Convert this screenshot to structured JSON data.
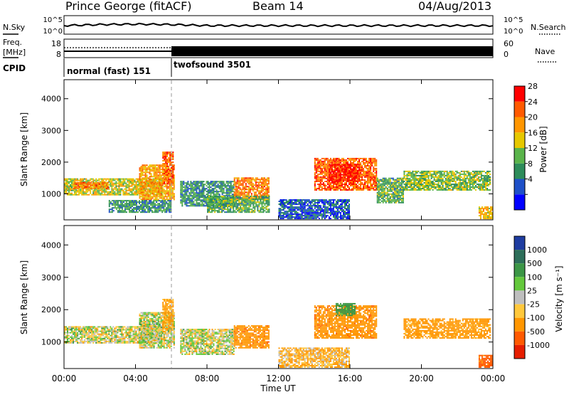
{
  "header": {
    "station": "Prince George (fitACF)",
    "beam": "Beam 14",
    "date": "04/Aug/2013"
  },
  "top_panels": {
    "nsky_label": "N.Sky",
    "nsearch_label": "N.Search",
    "noise_ticks_left": [
      "10^5",
      "10^0"
    ],
    "noise_ticks_right": [
      "10^5",
      "10^0"
    ],
    "freq_label_line1": "Freq.",
    "freq_label_line2": "[MHz]",
    "freq_ticks": [
      "18",
      "8"
    ],
    "nave_label": "Nave",
    "nave_ticks": [
      "60",
      "0"
    ],
    "cpid_label": "CPID",
    "cpid_segments": [
      {
        "label": "normal (fast) 151",
        "start_hour": 0
      },
      {
        "label": "twofsound 3501",
        "start_hour": 6
      }
    ]
  },
  "axes": {
    "ylabel": "Slant Range [km]",
    "yticks": [
      "4000",
      "3000",
      "2000",
      "1000"
    ],
    "xticks": [
      "00:00",
      "04:00",
      "08:00",
      "12:00",
      "16:00",
      "20:00",
      "00:00"
    ],
    "xlabel": "Time UT"
  },
  "power_scale": {
    "label": "Power [dB]",
    "ticks": [
      "28",
      "24",
      "20",
      "16",
      "12",
      "8",
      "4"
    ],
    "colors": [
      "#ff0000",
      "#ff5a00",
      "#ff9600",
      "#e6c800",
      "#5ab44b",
      "#2d8c5a",
      "#1e50c8",
      "#0000ff"
    ]
  },
  "velocity_scale": {
    "label": "Velocity [m s⁻¹]",
    "ticks": [
      "1000",
      "500",
      "100",
      "25",
      "-25",
      "-100",
      "-500",
      "-1000"
    ],
    "colors": [
      "#1e3ca0",
      "#2d6e5a",
      "#3c9646",
      "#64c83c",
      "#bebebe",
      "#ffc83c",
      "#ff9600",
      "#ff5a00",
      "#e61e00"
    ]
  },
  "chart_data": {
    "type": "heatmap",
    "title": "Prince George (fitACF)",
    "xlabel": "Time UT",
    "ylabel": "Slant Range [km]",
    "xlim": [
      0,
      24
    ],
    "ylim": [
      180,
      4600
    ],
    "mode_change_hour": 6,
    "panels": [
      {
        "name": "Power [dB]",
        "zlim": [
          0,
          30
        ],
        "echo_regions": [
          {
            "t0": 0.0,
            "t1": 5.5,
            "r0": 950,
            "r1": 1450,
            "value": 16
          },
          {
            "t0": 0.5,
            "t1": 2.5,
            "r0": 1150,
            "r1": 1350,
            "value": 22
          },
          {
            "t0": 4.2,
            "t1": 6.2,
            "r0": 800,
            "r1": 1900,
            "value": 20
          },
          {
            "t0": 5.5,
            "t1": 6.1,
            "r0": 1300,
            "r1": 2300,
            "value": 24
          },
          {
            "t0": 2.5,
            "t1": 6.0,
            "r0": 400,
            "r1": 800,
            "value": 10
          },
          {
            "t0": 6.5,
            "t1": 9.5,
            "r0": 600,
            "r1": 1400,
            "value": 10
          },
          {
            "t0": 9.5,
            "t1": 11.5,
            "r0": 800,
            "r1": 1500,
            "value": 22
          },
          {
            "t0": 8.0,
            "t1": 11.5,
            "r0": 400,
            "r1": 900,
            "value": 12
          },
          {
            "t0": 14.0,
            "t1": 17.5,
            "r0": 1100,
            "r1": 2100,
            "value": 24
          },
          {
            "t0": 14.8,
            "t1": 16.5,
            "r0": 1400,
            "r1": 1900,
            "value": 28
          },
          {
            "t0": 17.5,
            "t1": 19.0,
            "r0": 700,
            "r1": 1500,
            "value": 12
          },
          {
            "t0": 19.0,
            "t1": 23.8,
            "r0": 1100,
            "r1": 1700,
            "value": 14
          },
          {
            "t0": 12.0,
            "t1": 16.0,
            "r0": 200,
            "r1": 800,
            "value": 6
          },
          {
            "t0": 23.2,
            "t1": 24.0,
            "r0": 200,
            "r1": 600,
            "value": 18
          }
        ]
      },
      {
        "name": "Velocity [m s-1]",
        "zlim": [
          -1000,
          1000
        ],
        "echo_regions": [
          {
            "t0": 0.0,
            "t1": 5.5,
            "r0": 950,
            "r1": 1450,
            "value": 0
          },
          {
            "t0": 4.2,
            "t1": 6.2,
            "r0": 800,
            "r1": 1900,
            "value": 0
          },
          {
            "t0": 5.5,
            "t1": 6.1,
            "r0": 1300,
            "r1": 2300,
            "value": -150
          },
          {
            "t0": 6.5,
            "t1": 9.5,
            "r0": 600,
            "r1": 1400,
            "value": 0
          },
          {
            "t0": 9.5,
            "t1": 11.5,
            "r0": 800,
            "r1": 1500,
            "value": -400
          },
          {
            "t0": 14.0,
            "t1": 17.5,
            "r0": 1100,
            "r1": 2100,
            "value": -400
          },
          {
            "t0": 15.2,
            "t1": 16.3,
            "r0": 1800,
            "r1": 2200,
            "value": 200
          },
          {
            "t0": 19.0,
            "t1": 23.8,
            "r0": 1100,
            "r1": 1700,
            "value": -200
          },
          {
            "t0": 12.0,
            "t1": 16.0,
            "r0": 200,
            "r1": 800,
            "value": -100
          },
          {
            "t0": 23.2,
            "t1": 24.0,
            "r0": 200,
            "r1": 600,
            "value": -600
          }
        ]
      }
    ]
  }
}
